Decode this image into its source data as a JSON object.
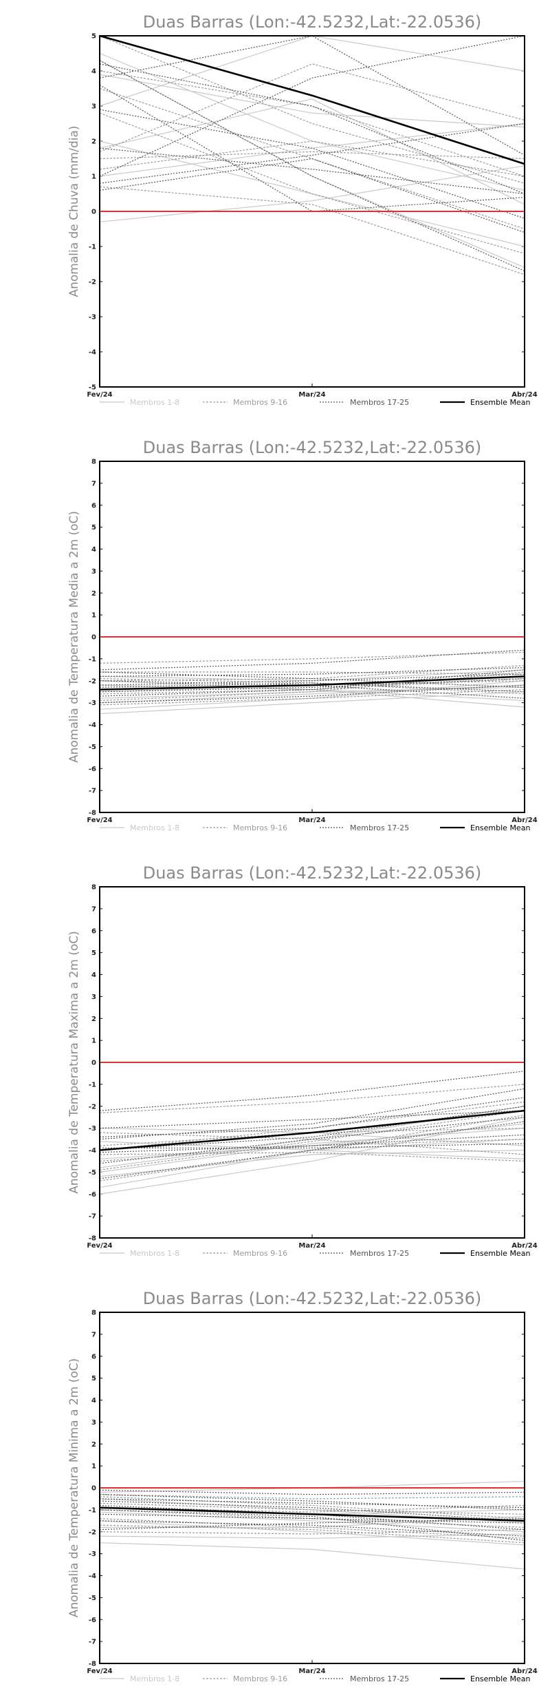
{
  "colors": {
    "zero_line": "#e03030",
    "members_1_8": "#c8c8c8",
    "members_9_16": "#9a9a9a",
    "members_17_25": "#555555",
    "ensemble_mean": "#000000"
  },
  "chart_data": [
    {
      "type": "line",
      "title": "Duas Barras (Lon:-42.5232,Lat:-22.0536)",
      "ylabel": "Anomalia de Chuva (mm/dia)",
      "x": [
        "Fev/24",
        "Mar/24",
        "Abr/24"
      ],
      "ylim": [
        -5,
        5
      ],
      "yticks": [
        "-5",
        "-4",
        "-3",
        "-2",
        "-1",
        "0",
        "1",
        "2",
        "3",
        "4",
        "5"
      ],
      "legend": [
        "Membros 1-8",
        "Membros 9-16",
        "Membros 17-25",
        "Ensemble Mean"
      ],
      "series": [
        {
          "group": 1,
          "values": [
            4.5,
            2.0,
            0.6
          ]
        },
        {
          "group": 1,
          "values": [
            3.9,
            2.8,
            2.4
          ]
        },
        {
          "group": 1,
          "values": [
            -0.3,
            0.3,
            1.3
          ]
        },
        {
          "group": 1,
          "values": [
            1.0,
            1.8,
            2.5
          ]
        },
        {
          "group": 1,
          "values": [
            4.3,
            1.0,
            -1.6
          ]
        },
        {
          "group": 1,
          "values": [
            2.0,
            0.5,
            -1.0
          ]
        },
        {
          "group": 1,
          "values": [
            3.0,
            5.0,
            4.0
          ]
        },
        {
          "group": 1,
          "values": [
            1.8,
            3.2,
            0.2
          ]
        },
        {
          "group": 2,
          "values": [
            4.0,
            3.0,
            1.0
          ]
        },
        {
          "group": 2,
          "values": [
            1.5,
            1.7,
            1.5
          ]
        },
        {
          "group": 2,
          "values": [
            0.7,
            0.2,
            -1.8
          ]
        },
        {
          "group": 2,
          "values": [
            3.5,
            1.5,
            -0.5
          ]
        },
        {
          "group": 2,
          "values": [
            1.2,
            2.0,
            1.0
          ]
        },
        {
          "group": 2,
          "values": [
            5.0,
            2.5,
            0.8
          ]
        },
        {
          "group": 2,
          "values": [
            2.8,
            0.5,
            -1.2
          ]
        },
        {
          "group": 2,
          "values": [
            1.7,
            4.2,
            2.6
          ]
        },
        {
          "group": 3,
          "values": [
            4.2,
            3.0,
            0.5
          ]
        },
        {
          "group": 3,
          "values": [
            3.8,
            5.0,
            1.6
          ]
        },
        {
          "group": 3,
          "values": [
            0.6,
            1.5,
            -0.6
          ]
        },
        {
          "group": 3,
          "values": [
            1.8,
            1.2,
            0.5
          ]
        },
        {
          "group": 3,
          "values": [
            4.3,
            1.0,
            -1.7
          ]
        },
        {
          "group": 3,
          "values": [
            2.9,
            1.8,
            -0.2
          ]
        },
        {
          "group": 3,
          "values": [
            0.8,
            1.6,
            2.5
          ]
        },
        {
          "group": 3,
          "values": [
            3.6,
            0.0,
            0.4
          ]
        },
        {
          "group": 3,
          "values": [
            1.0,
            3.8,
            5.0
          ]
        },
        {
          "group": 4,
          "values": [
            5.0,
            3.3,
            1.35
          ]
        }
      ]
    },
    {
      "type": "line",
      "title": "Duas Barras (Lon:-42.5232,Lat:-22.0536)",
      "ylabel": "Anomalia de Temperatura Media a 2m (oC)",
      "x": [
        "Fev/24",
        "Mar/24",
        "Abr/24"
      ],
      "ylim": [
        -8,
        8
      ],
      "yticks": [
        "-8",
        "-7",
        "-6",
        "-5",
        "-4",
        "-3",
        "-2",
        "-1",
        "0",
        "1",
        "2",
        "3",
        "4",
        "5",
        "6",
        "7",
        "8"
      ],
      "legend": [
        "Membros 1-8",
        "Membros 9-16",
        "Membros 17-25",
        "Ensemble Mean"
      ],
      "series": [
        {
          "group": 1,
          "values": [
            -3.3,
            -2.8,
            -2.0
          ]
        },
        {
          "group": 1,
          "values": [
            -3.0,
            -2.6,
            -2.2
          ]
        },
        {
          "group": 1,
          "values": [
            -2.2,
            -2.4,
            -3.2
          ]
        },
        {
          "group": 1,
          "values": [
            -1.8,
            -2.0,
            -1.5
          ]
        },
        {
          "group": 1,
          "values": [
            -3.5,
            -3.0,
            -2.5
          ]
        },
        {
          "group": 1,
          "values": [
            -2.5,
            -2.2,
            -1.8
          ]
        },
        {
          "group": 1,
          "values": [
            -2.0,
            -2.4,
            -2.9
          ]
        },
        {
          "group": 1,
          "values": [
            -2.8,
            -2.5,
            -2.3
          ]
        },
        {
          "group": 2,
          "values": [
            -1.2,
            -1.0,
            -0.7
          ]
        },
        {
          "group": 2,
          "values": [
            -2.0,
            -1.9,
            -1.3
          ]
        },
        {
          "group": 2,
          "values": [
            -2.4,
            -2.2,
            -2.0
          ]
        },
        {
          "group": 2,
          "values": [
            -3.1,
            -2.8,
            -2.4
          ]
        },
        {
          "group": 2,
          "values": [
            -1.6,
            -1.6,
            -1.7
          ]
        },
        {
          "group": 2,
          "values": [
            -2.6,
            -2.4,
            -1.9
          ]
        },
        {
          "group": 2,
          "values": [
            -1.9,
            -2.1,
            -2.6
          ]
        },
        {
          "group": 2,
          "values": [
            -2.9,
            -2.5,
            -1.6
          ]
        },
        {
          "group": 3,
          "values": [
            -1.5,
            -1.2,
            -0.6
          ]
        },
        {
          "group": 3,
          "values": [
            -1.8,
            -1.7,
            -1.4
          ]
        },
        {
          "group": 3,
          "values": [
            -2.2,
            -2.0,
            -1.7
          ]
        },
        {
          "group": 3,
          "values": [
            -2.5,
            -2.3,
            -1.9
          ]
        },
        {
          "group": 3,
          "values": [
            -2.0,
            -2.2,
            -2.8
          ]
        },
        {
          "group": 3,
          "values": [
            -3.0,
            -2.7,
            -2.2
          ]
        },
        {
          "group": 3,
          "values": [
            -2.7,
            -2.4,
            -1.5
          ]
        },
        {
          "group": 3,
          "values": [
            -1.6,
            -1.9,
            -2.3
          ]
        },
        {
          "group": 3,
          "values": [
            -2.3,
            -2.1,
            -2.5
          ]
        },
        {
          "group": 4,
          "values": [
            -2.4,
            -2.2,
            -1.8
          ]
        }
      ]
    },
    {
      "type": "line",
      "title": "Duas Barras (Lon:-42.5232,Lat:-22.0536)",
      "ylabel": "Anomalia de Temperatura Maxima a 2m (oC)",
      "x": [
        "Fev/24",
        "Mar/24",
        "Abr/24"
      ],
      "ylim": [
        -8,
        8
      ],
      "yticks": [
        "-8",
        "-7",
        "-6",
        "-5",
        "-4",
        "-3",
        "-2",
        "-1",
        "0",
        "1",
        "2",
        "3",
        "4",
        "5",
        "6",
        "7",
        "8"
      ],
      "legend": [
        "Membros 1-8",
        "Membros 9-16",
        "Membros 17-25",
        "Ensemble Mean"
      ],
      "series": [
        {
          "group": 1,
          "values": [
            -6.0,
            -4.5,
            -2.5
          ]
        },
        {
          "group": 1,
          "values": [
            -5.7,
            -4.0,
            -3.5
          ]
        },
        {
          "group": 1,
          "values": [
            -5.2,
            -4.2,
            -4.0
          ]
        },
        {
          "group": 1,
          "values": [
            -4.8,
            -3.5,
            -2.0
          ]
        },
        {
          "group": 1,
          "values": [
            -3.0,
            -3.2,
            -3.8
          ]
        },
        {
          "group": 1,
          "values": [
            -4.4,
            -3.8,
            -2.8
          ]
        },
        {
          "group": 1,
          "values": [
            -3.6,
            -4.0,
            -4.4
          ]
        },
        {
          "group": 1,
          "values": [
            -5.0,
            -3.7,
            -3.0
          ]
        },
        {
          "group": 2,
          "values": [
            -2.3,
            -1.8,
            -1.0
          ]
        },
        {
          "group": 2,
          "values": [
            -4.0,
            -3.0,
            -1.8
          ]
        },
        {
          "group": 2,
          "values": [
            -4.5,
            -3.8,
            -3.5
          ]
        },
        {
          "group": 2,
          "values": [
            -3.2,
            -3.5,
            -4.2
          ]
        },
        {
          "group": 2,
          "values": [
            -5.4,
            -4.0,
            -2.4
          ]
        },
        {
          "group": 2,
          "values": [
            -3.8,
            -3.2,
            -3.0
          ]
        },
        {
          "group": 2,
          "values": [
            -4.9,
            -3.6,
            -2.2
          ]
        },
        {
          "group": 2,
          "values": [
            -4.2,
            -4.1,
            -4.5
          ]
        },
        {
          "group": 3,
          "values": [
            -2.2,
            -1.5,
            -0.4
          ]
        },
        {
          "group": 3,
          "values": [
            -3.5,
            -2.8,
            -1.2
          ]
        },
        {
          "group": 3,
          "values": [
            -4.0,
            -3.4,
            -2.0
          ]
        },
        {
          "group": 3,
          "values": [
            -4.6,
            -3.5,
            -2.5
          ]
        },
        {
          "group": 3,
          "values": [
            -3.9,
            -3.9,
            -3.7
          ]
        },
        {
          "group": 3,
          "values": [
            -5.3,
            -4.0,
            -2.7
          ]
        },
        {
          "group": 3,
          "values": [
            -3.4,
            -3.0,
            -1.6
          ]
        },
        {
          "group": 3,
          "values": [
            -4.1,
            -3.8,
            -3.3
          ]
        },
        {
          "group": 3,
          "values": [
            -3.0,
            -2.6,
            -2.2
          ]
        },
        {
          "group": 4,
          "values": [
            -4.0,
            -3.2,
            -2.2
          ]
        }
      ]
    },
    {
      "type": "line",
      "title": "Duas Barras (Lon:-42.5232,Lat:-22.0536)",
      "ylabel": "Anomalia de Temperatura Minima a 2m (oC)",
      "x": [
        "Fev/24",
        "Mar/24",
        "Abr/24"
      ],
      "ylim": [
        -8,
        8
      ],
      "yticks": [
        "-8",
        "-7",
        "-6",
        "-5",
        "-4",
        "-3",
        "-2",
        "-1",
        "0",
        "1",
        "2",
        "3",
        "4",
        "5",
        "6",
        "7",
        "8"
      ],
      "legend": [
        "Membros 1-8",
        "Membros 9-16",
        "Membros 17-25",
        "Ensemble Mean"
      ],
      "series": [
        {
          "group": 1,
          "values": [
            -2.5,
            -2.8,
            -3.7
          ]
        },
        {
          "group": 1,
          "values": [
            -0.2,
            0.0,
            0.3
          ]
        },
        {
          "group": 1,
          "values": [
            -1.5,
            -2.0,
            -2.6
          ]
        },
        {
          "group": 1,
          "values": [
            -0.9,
            -1.2,
            -1.0
          ]
        },
        {
          "group": 1,
          "values": [
            -2.2,
            -2.3,
            -2.1
          ]
        },
        {
          "group": 1,
          "values": [
            -0.5,
            -1.0,
            -1.6
          ]
        },
        {
          "group": 1,
          "values": [
            -1.8,
            -1.8,
            -1.3
          ]
        },
        {
          "group": 1,
          "values": [
            -1.1,
            -1.5,
            -2.0
          ]
        },
        {
          "group": 2,
          "values": [
            -0.3,
            -0.5,
            -0.4
          ]
        },
        {
          "group": 2,
          "values": [
            -1.4,
            -1.8,
            -2.3
          ]
        },
        {
          "group": 2,
          "values": [
            -0.7,
            -1.0,
            -1.2
          ]
        },
        {
          "group": 2,
          "values": [
            -2.0,
            -2.1,
            -1.9
          ]
        },
        {
          "group": 2,
          "values": [
            -1.0,
            -1.4,
            -1.8
          ]
        },
        {
          "group": 2,
          "values": [
            -0.4,
            -0.8,
            -1.4
          ]
        },
        {
          "group": 2,
          "values": [
            -1.7,
            -1.9,
            -2.5
          ]
        },
        {
          "group": 2,
          "values": [
            -0.9,
            -1.1,
            -0.8
          ]
        },
        {
          "group": 3,
          "values": [
            -0.1,
            -0.3,
            -0.2
          ]
        },
        {
          "group": 3,
          "values": [
            -0.6,
            -0.9,
            -1.5
          ]
        },
        {
          "group": 3,
          "values": [
            -1.2,
            -1.4,
            -1.6
          ]
        },
        {
          "group": 3,
          "values": [
            -1.5,
            -1.7,
            -2.2
          ]
        },
        {
          "group": 3,
          "values": [
            -0.8,
            -1.2,
            -1.9
          ]
        },
        {
          "group": 3,
          "values": [
            -0.3,
            -0.6,
            -1.0
          ]
        },
        {
          "group": 3,
          "values": [
            -1.9,
            -1.6,
            -1.4
          ]
        },
        {
          "group": 3,
          "values": [
            -1.0,
            -1.3,
            -2.4
          ]
        },
        {
          "group": 3,
          "values": [
            -0.5,
            -0.7,
            -0.9
          ]
        },
        {
          "group": 4,
          "values": [
            -0.9,
            -1.2,
            -1.5
          ]
        }
      ]
    }
  ]
}
